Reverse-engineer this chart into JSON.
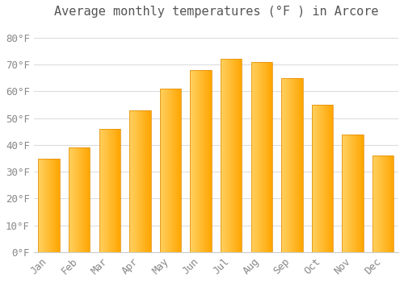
{
  "title": "Average monthly temperatures (°F ) in Arcore",
  "months": [
    "Jan",
    "Feb",
    "Mar",
    "Apr",
    "May",
    "Jun",
    "Jul",
    "Aug",
    "Sep",
    "Oct",
    "Nov",
    "Dec"
  ],
  "values": [
    35,
    39,
    46,
    53,
    61,
    68,
    72,
    71,
    65,
    55,
    44,
    36
  ],
  "bar_color_main": "#FFA500",
  "bar_color_light": "#FFD060",
  "bar_edge_color": "#E08800",
  "background_color": "#FFFFFF",
  "grid_color": "#DDDDDD",
  "text_color": "#888888",
  "title_color": "#555555",
  "ylim": [
    0,
    85
  ],
  "yticks": [
    0,
    10,
    20,
    30,
    40,
    50,
    60,
    70,
    80
  ],
  "title_fontsize": 11,
  "tick_fontsize": 9,
  "bar_width": 0.7
}
